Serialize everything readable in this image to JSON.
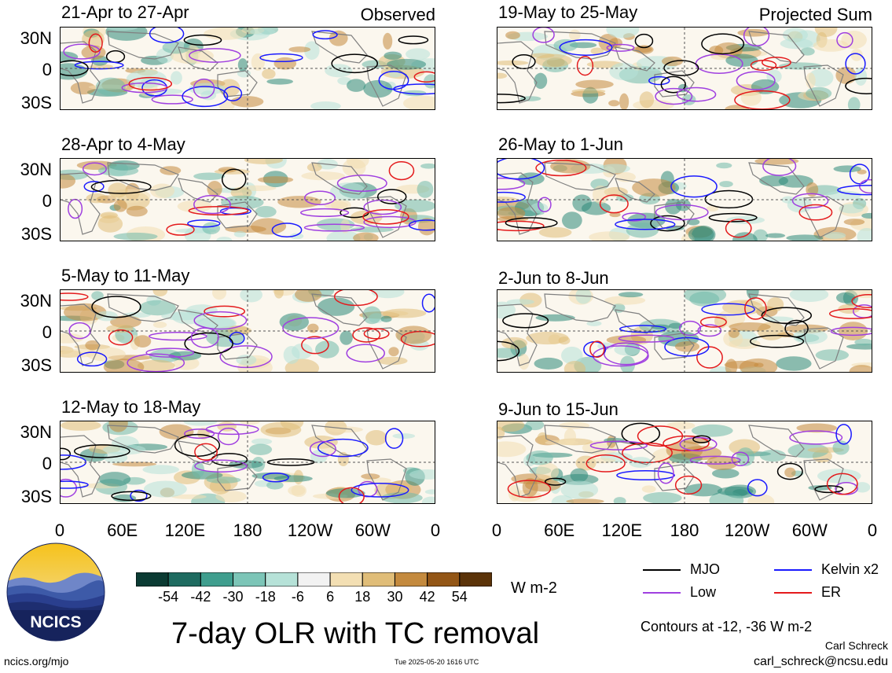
{
  "left_column_tag": "Observed",
  "right_column_tag": "Projected Sum",
  "panels_left": [
    {
      "title": "21-Apr to 27-Apr"
    },
    {
      "title": "28-Apr to 4-May"
    },
    {
      "title": "5-May to 11-May"
    },
    {
      "title": "12-May to 18-May"
    }
  ],
  "panels_right": [
    {
      "title": "19-May to 25-May"
    },
    {
      "title": "26-May to 1-Jun"
    },
    {
      "title": "2-Jun to 8-Jun"
    },
    {
      "title": "9-Jun to 15-Jun"
    }
  ],
  "lat_labels": [
    "30N",
    "0",
    "30S"
  ],
  "lon_labels": [
    "0",
    "60E",
    "120E",
    "180",
    "120W",
    "60W",
    "0"
  ],
  "colorbar": {
    "labels": [
      "-54",
      "-42",
      "-30",
      "-18",
      "-6",
      "6",
      "18",
      "30",
      "42",
      "54"
    ],
    "colors": [
      "#0b3b33",
      "#1e6b60",
      "#3f9e8e",
      "#7cc5b7",
      "#b6e2d8",
      "#f2f2f2",
      "#f3dfb3",
      "#e0bd78",
      "#c48a3e",
      "#935616",
      "#5b3309"
    ],
    "units": "W m-2"
  },
  "legend": [
    {
      "label": "MJO",
      "color": "#000000"
    },
    {
      "label": "Kelvin x2",
      "color": "#1a1aff"
    },
    {
      "label": "Low",
      "color": "#a040e0"
    },
    {
      "label": "ER",
      "color": "#e41a1c"
    }
  ],
  "contour_note": "Contours at -12, -36 W m-2",
  "main_title": "7-day OLR with TC removal",
  "logo_text": "NCICS",
  "url_left": "ncics.org/mjo",
  "timestamp": "Tue 2025-05-20 1616 UTC",
  "author": "Carl Schreck",
  "email": "carl_schreck@ncsu.edu"
}
